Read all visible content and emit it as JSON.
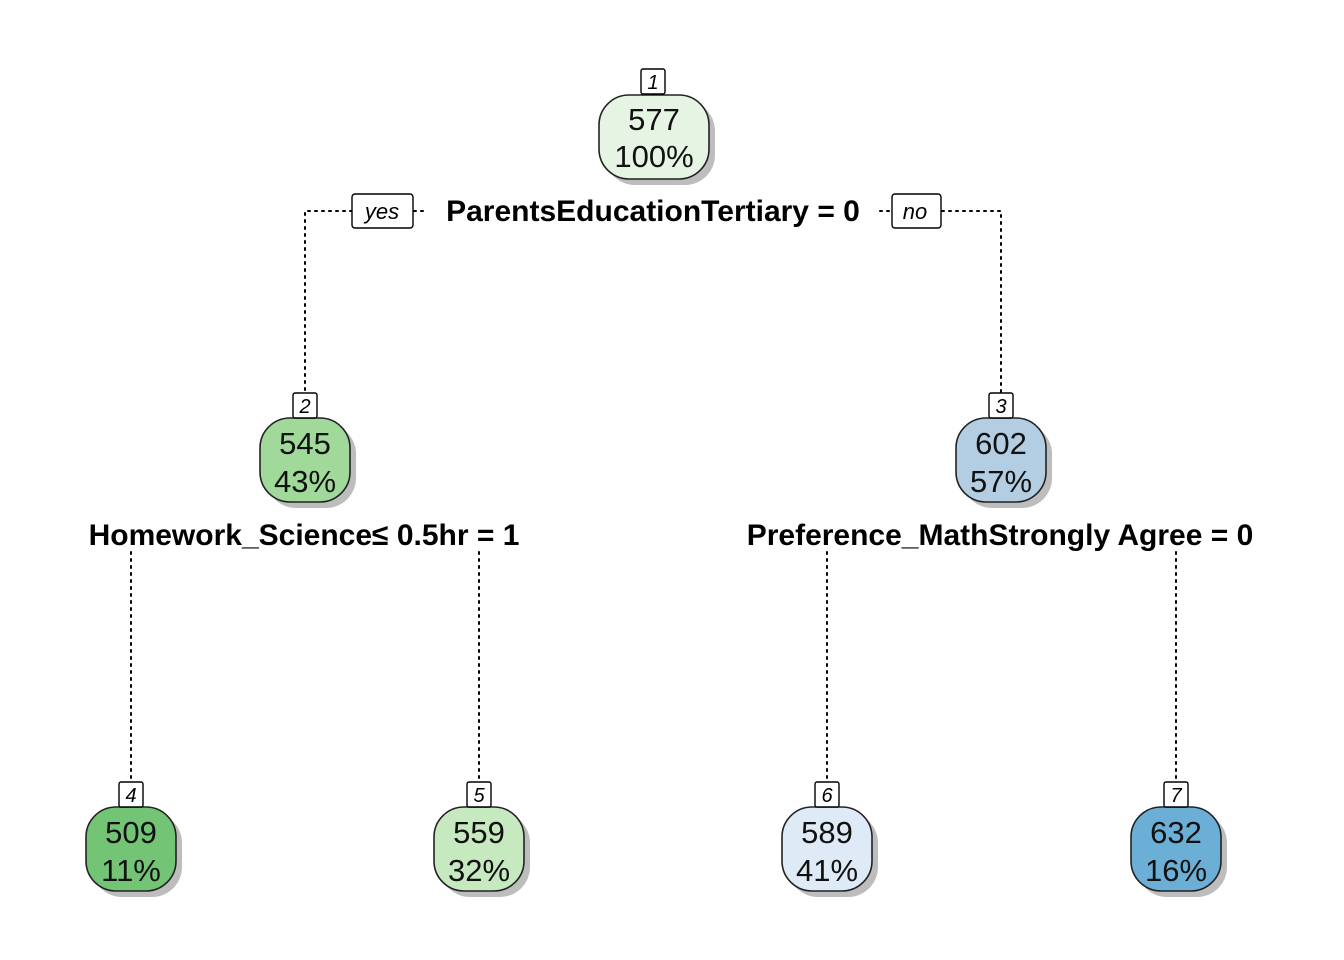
{
  "tree": {
    "edge_labels": {
      "yes": "yes",
      "no": "no"
    },
    "nodes": [
      {
        "id": "1",
        "value": "577",
        "percent": "100%",
        "fill": "#e5f4e3"
      },
      {
        "id": "2",
        "value": "545",
        "percent": "43%",
        "fill": "#a1d99b"
      },
      {
        "id": "3",
        "value": "602",
        "percent": "57%",
        "fill": "#b3cde3"
      },
      {
        "id": "4",
        "value": "509",
        "percent": "11%",
        "fill": "#74c476"
      },
      {
        "id": "5",
        "value": "559",
        "percent": "32%",
        "fill": "#c7e9c0"
      },
      {
        "id": "6",
        "value": "589",
        "percent": "41%",
        "fill": "#deebf7"
      },
      {
        "id": "7",
        "value": "632",
        "percent": "16%",
        "fill": "#6baed6"
      }
    ],
    "splits": [
      {
        "node": "1",
        "label": "ParentsEducationTertiary = 0"
      },
      {
        "node": "2",
        "label": "Homework_Science≤ 0.5hr = 1"
      },
      {
        "node": "3",
        "label": "Preference_MathStrongly Agree = 0"
      }
    ]
  }
}
